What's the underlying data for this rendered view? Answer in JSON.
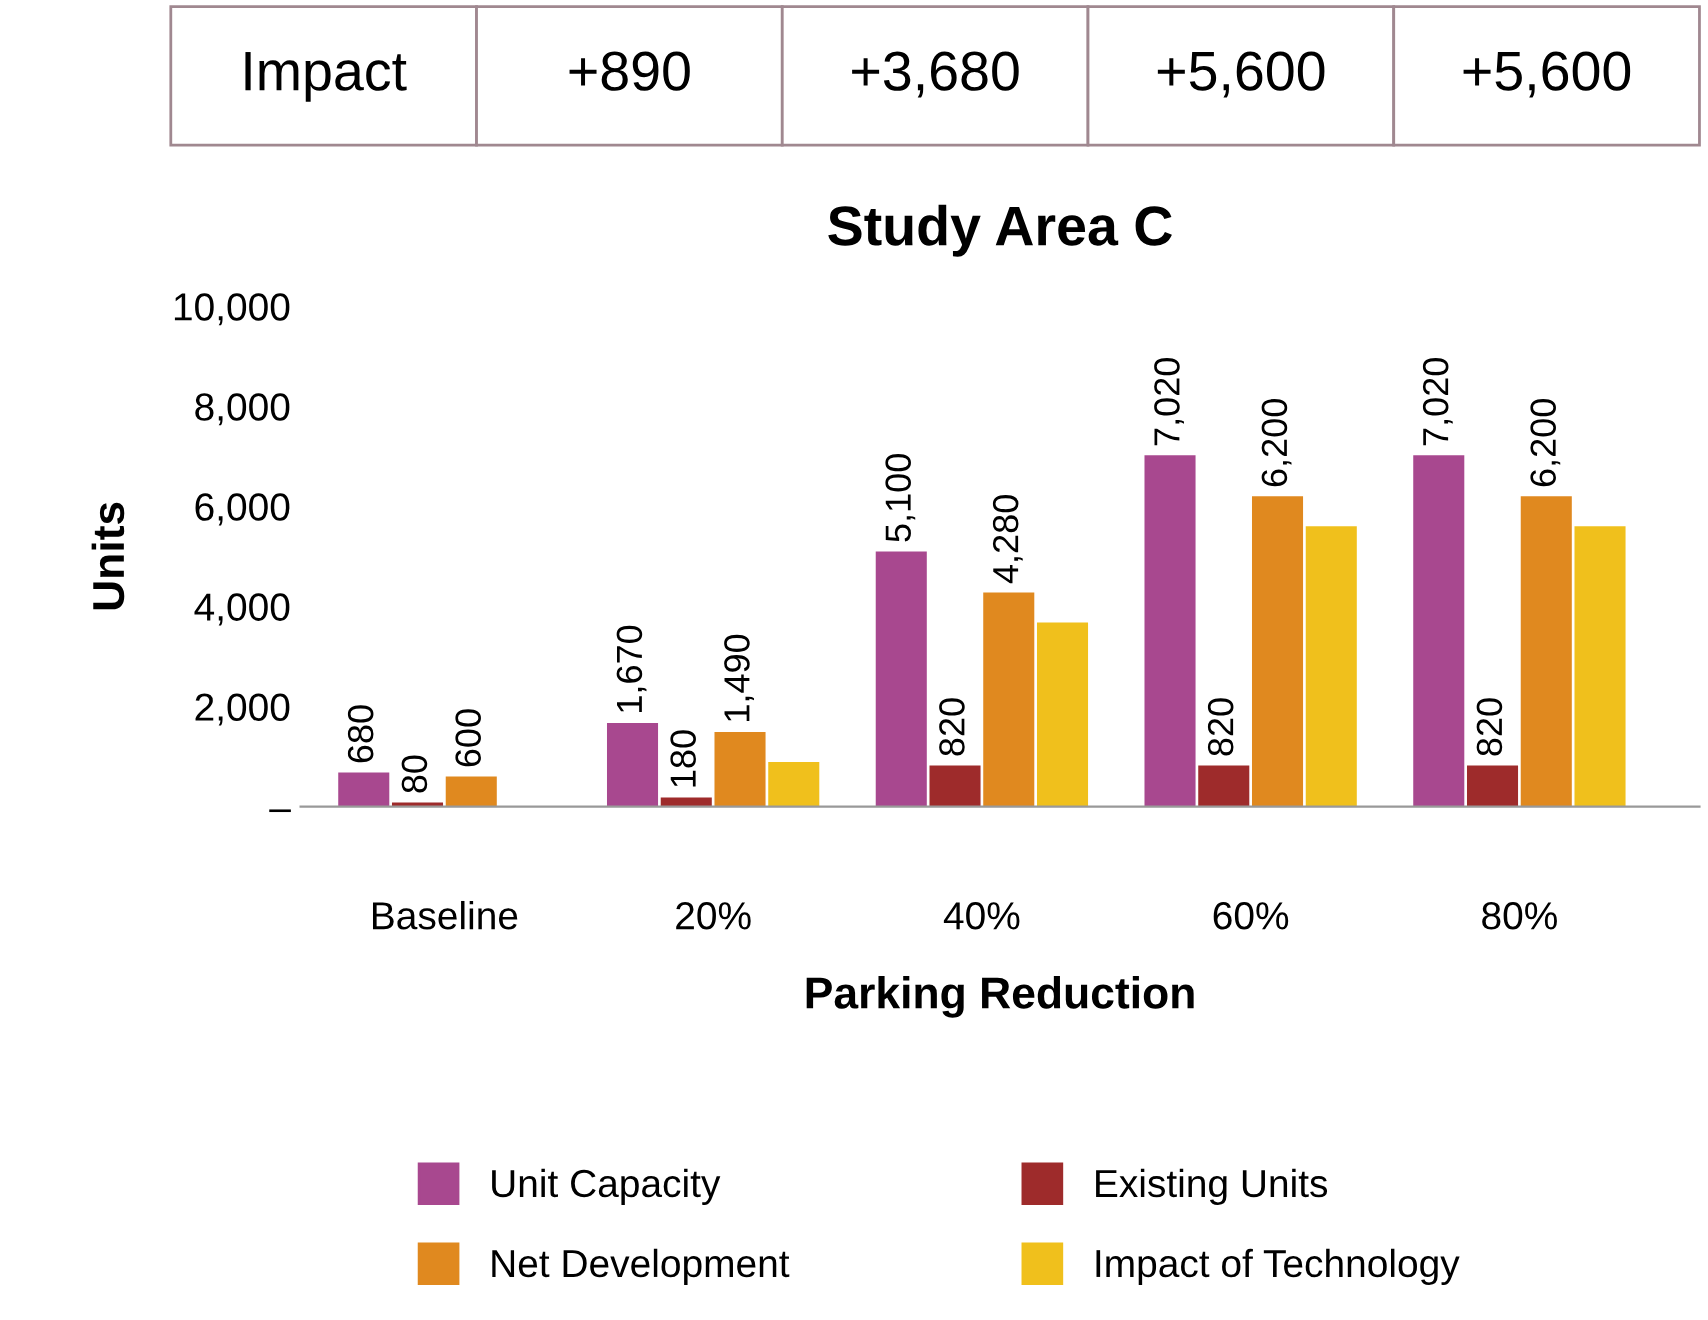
{
  "chart_data": {
    "type": "bar",
    "title": "Study Area C",
    "xlabel": "Parking Reduction",
    "ylabel": "Units",
    "categories": [
      "Baseline",
      "20%",
      "40%",
      "60%",
      "80%"
    ],
    "series": [
      {
        "name": "Unit Capacity",
        "color": "#a8488f",
        "values": [
          680,
          1670,
          5100,
          7020,
          7020
        ],
        "value_labels": [
          "680",
          "1,670",
          "5,100",
          "7,020",
          "7,020"
        ]
      },
      {
        "name": "Existing Units",
        "color": "#9e2b2b",
        "values": [
          80,
          180,
          820,
          820,
          820
        ],
        "value_labels": [
          "80",
          "180",
          "820",
          "820",
          "820"
        ]
      },
      {
        "name": "Net Development",
        "color": "#e0891f",
        "values": [
          600,
          1490,
          4280,
          6200,
          6200
        ],
        "value_labels": [
          "600",
          "1,490",
          "4,280",
          "6,200",
          "6,200"
        ]
      },
      {
        "name": "Impact of Technology",
        "color": "#f0c01c",
        "values": [
          null,
          890,
          3680,
          5600,
          5600
        ],
        "value_labels": [
          "Impact",
          "+890",
          "+3,680",
          "+5,600",
          "+5,600"
        ]
      }
    ],
    "ylim": [
      0,
      10000
    ],
    "yticks": [
      {
        "value": 0,
        "label": "–"
      },
      {
        "value": 2000,
        "label": "2,000"
      },
      {
        "value": 4000,
        "label": "4,000"
      },
      {
        "value": 6000,
        "label": "6,000"
      },
      {
        "value": 8000,
        "label": "8,000"
      },
      {
        "value": 10000,
        "label": "10,000"
      }
    ],
    "grid": false,
    "legend": "bottom"
  }
}
